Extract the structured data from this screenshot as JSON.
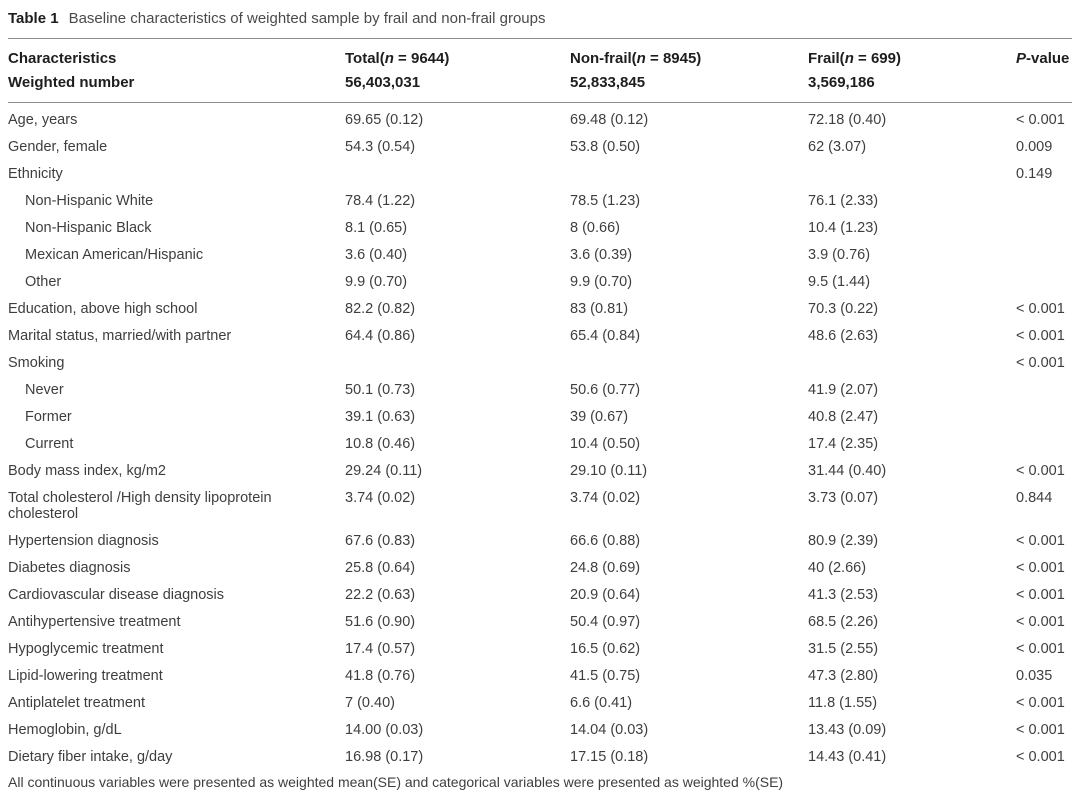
{
  "caption": {
    "label": "Table 1",
    "text": "Baseline characteristics of weighted sample by frail and non-frail groups"
  },
  "header": {
    "characteristics": "Characteristics",
    "weighted_label": "Weighted number",
    "groups": {
      "total": {
        "pre": "Total(",
        "n": "n",
        "post": " = 9644)",
        "weighted": "56,403,031"
      },
      "nonfrail": {
        "pre": "Non-frail(",
        "n": "n",
        "post": " = 8945)",
        "weighted": "52,833,845"
      },
      "frail": {
        "pre": "Frail(",
        "n": "n",
        "post": " = 699)",
        "weighted": "3,569,186"
      }
    },
    "pvalue": {
      "italic": "P",
      "rest": "-value"
    }
  },
  "rows": [
    {
      "label": "Age, years",
      "indent": false,
      "total": "69.65 (0.12)",
      "nonfrail": "69.48 (0.12)",
      "frail": "72.18 (0.40)",
      "p": "< 0.001"
    },
    {
      "label": "Gender, female",
      "indent": false,
      "total": "54.3 (0.54)",
      "nonfrail": "53.8 (0.50)",
      "frail": "62 (3.07)",
      "p": "0.009"
    },
    {
      "label": "Ethnicity",
      "indent": false,
      "total": "",
      "nonfrail": "",
      "frail": "",
      "p": "0.149"
    },
    {
      "label": "Non-Hispanic White",
      "indent": true,
      "total": "78.4 (1.22)",
      "nonfrail": "78.5 (1.23)",
      "frail": "76.1 (2.33)",
      "p": ""
    },
    {
      "label": "Non-Hispanic Black",
      "indent": true,
      "total": "8.1 (0.65)",
      "nonfrail": "8 (0.66)",
      "frail": "10.4 (1.23)",
      "p": ""
    },
    {
      "label": "Mexican American/Hispanic",
      "indent": true,
      "total": "3.6 (0.40)",
      "nonfrail": "3.6 (0.39)",
      "frail": "3.9 (0.76)",
      "p": ""
    },
    {
      "label": "Other",
      "indent": true,
      "total": "9.9 (0.70)",
      "nonfrail": "9.9 (0.70)",
      "frail": "9.5 (1.44)",
      "p": ""
    },
    {
      "label": "Education, above high school",
      "indent": false,
      "total": "82.2 (0.82)",
      "nonfrail": "83 (0.81)",
      "frail": "70.3 (0.22)",
      "p": "< 0.001"
    },
    {
      "label": "Marital status, married/with partner",
      "indent": false,
      "total": "64.4 (0.86)",
      "nonfrail": "65.4 (0.84)",
      "frail": "48.6 (2.63)",
      "p": "< 0.001"
    },
    {
      "label": "Smoking",
      "indent": false,
      "total": "",
      "nonfrail": "",
      "frail": "",
      "p": "< 0.001"
    },
    {
      "label": "Never",
      "indent": true,
      "total": "50.1 (0.73)",
      "nonfrail": "50.6 (0.77)",
      "frail": "41.9 (2.07)",
      "p": ""
    },
    {
      "label": "Former",
      "indent": true,
      "total": "39.1 (0.63)",
      "nonfrail": "39 (0.67)",
      "frail": "40.8 (2.47)",
      "p": ""
    },
    {
      "label": "Current",
      "indent": true,
      "total": "10.8 (0.46)",
      "nonfrail": "10.4 (0.50)",
      "frail": "17.4 (2.35)",
      "p": ""
    },
    {
      "label": "Body mass index, kg/m2",
      "indent": false,
      "total": "29.24 (0.11)",
      "nonfrail": "29.10 (0.11)",
      "frail": "31.44 (0.40)",
      "p": "< 0.001"
    },
    {
      "label": "Total cholesterol /High density lipoprotein cholesterol",
      "indent": false,
      "total": "3.74 (0.02)",
      "nonfrail": "3.74 (0.02)",
      "frail": "3.73 (0.07)",
      "p": "0.844"
    },
    {
      "label": "Hypertension diagnosis",
      "indent": false,
      "total": "67.6 (0.83)",
      "nonfrail": "66.6 (0.88)",
      "frail": "80.9 (2.39)",
      "p": "< 0.001"
    },
    {
      "label": "Diabetes diagnosis",
      "indent": false,
      "total": "25.8 (0.64)",
      "nonfrail": "24.8 (0.69)",
      "frail": "40 (2.66)",
      "p": "< 0.001"
    },
    {
      "label": "Cardiovascular disease diagnosis",
      "indent": false,
      "total": "22.2 (0.63)",
      "nonfrail": "20.9 (0.64)",
      "frail": "41.3 (2.53)",
      "p": "< 0.001"
    },
    {
      "label": "Antihypertensive treatment",
      "indent": false,
      "total": "51.6 (0.90)",
      "nonfrail": "50.4 (0.97)",
      "frail": "68.5 (2.26)",
      "p": "< 0.001"
    },
    {
      "label": "Hypoglycemic treatment",
      "indent": false,
      "total": "17.4 (0.57)",
      "nonfrail": "16.5 (0.62)",
      "frail": "31.5 (2.55)",
      "p": "< 0.001"
    },
    {
      "label": "Lipid-lowering treatment",
      "indent": false,
      "total": "41.8 (0.76)",
      "nonfrail": "41.5 (0.75)",
      "frail": "47.3 (2.80)",
      "p": "0.035"
    },
    {
      "label": "Antiplatelet treatment",
      "indent": false,
      "total": "7 (0.40)",
      "nonfrail": "6.6 (0.41)",
      "frail": "11.8 (1.55)",
      "p": "< 0.001"
    },
    {
      "label": "Hemoglobin, g/dL",
      "indent": false,
      "total": "14.00 (0.03)",
      "nonfrail": "14.04 (0.03)",
      "frail": "13.43 (0.09)",
      "p": "< 0.001"
    },
    {
      "label": "Dietary fiber intake, g/day",
      "indent": false,
      "total": "16.98 (0.17)",
      "nonfrail": "17.15 (0.18)",
      "frail": "14.43 (0.41)",
      "p": "< 0.001"
    }
  ],
  "footnote": "All continuous variables were presented as weighted mean(SE) and categorical variables were presented as weighted %(SE)",
  "colors": {
    "rule": "#8c8c8c",
    "text": "#3e3e3e",
    "bold_text": "#1e1e1e",
    "background": "#ffffff"
  }
}
